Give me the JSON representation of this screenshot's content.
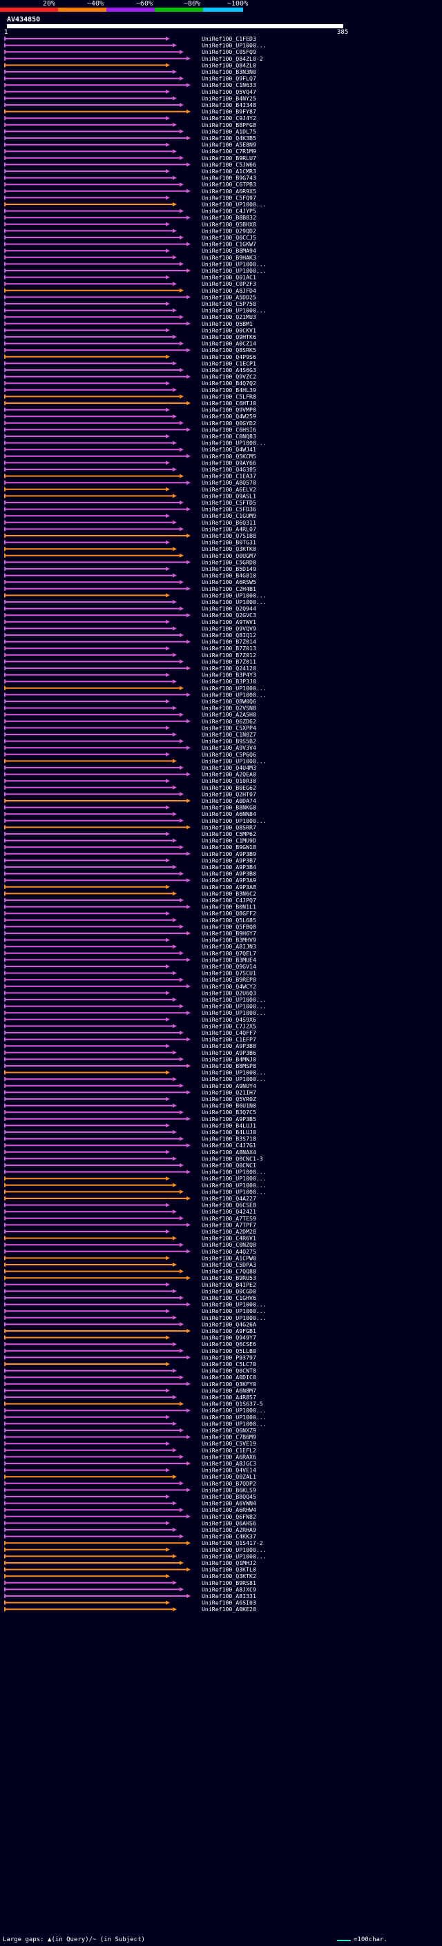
{
  "scale": {
    "ticks": [
      "20%",
      "~40%",
      "~60%",
      "~80%",
      "~100%"
    ],
    "colors": {
      "c20": "#ff2020",
      "c40": "#ff7f00",
      "c60": "#a020f0",
      "c80": "#00c000",
      "c100": "#00c8ff"
    }
  },
  "query": {
    "name": "AV434850",
    "start": "1",
    "end": "385"
  },
  "hit_colors": {
    "magenta": "#d85ad8",
    "orange": "#ff8c1a"
  },
  "hits": [
    {
      "label": "UniRef100_C1FED3",
      "color": "magenta"
    },
    {
      "label": "UniRef100_UP1000...",
      "color": "magenta"
    },
    {
      "label": "UniRef100_C0SFQ9",
      "color": "magenta"
    },
    {
      "label": "UniRef100_Q84ZL0-2",
      "color": "magenta"
    },
    {
      "label": "UniRef100_Q84ZL0",
      "color": "orange"
    },
    {
      "label": "UniRef100_B3N3N0",
      "color": "magenta"
    },
    {
      "label": "UniRef100_Q9FLQ7",
      "color": "magenta"
    },
    {
      "label": "UniRef100_C1N633",
      "color": "magenta"
    },
    {
      "label": "UniRef100_Q5VQ47",
      "color": "magenta"
    },
    {
      "label": "UniRef100_B4NY25",
      "color": "magenta"
    },
    {
      "label": "UniRef100_B4I348",
      "color": "magenta"
    },
    {
      "label": "UniRef100_B9FY87",
      "color": "orange"
    },
    {
      "label": "UniRef100_C9J4Y2",
      "color": "magenta"
    },
    {
      "label": "UniRef100_B8PFG8",
      "color": "magenta"
    },
    {
      "label": "UniRef100_A1DL75",
      "color": "magenta"
    },
    {
      "label": "UniRef100_Q4K3B5",
      "color": "magenta"
    },
    {
      "label": "UniRef100_A5E8N9",
      "color": "magenta"
    },
    {
      "label": "UniRef100_C7R1M9",
      "color": "magenta"
    },
    {
      "label": "UniRef100_B9RLU7",
      "color": "magenta"
    },
    {
      "label": "UniRef100_C5JW66",
      "color": "magenta"
    },
    {
      "label": "UniRef100_A1CMR3",
      "color": "magenta"
    },
    {
      "label": "UniRef100_B9G743",
      "color": "magenta"
    },
    {
      "label": "UniRef100_C6TPB3",
      "color": "magenta"
    },
    {
      "label": "UniRef100_A6R9X5",
      "color": "magenta"
    },
    {
      "label": "UniRef100_C5FQ97",
      "color": "magenta"
    },
    {
      "label": "UniRef100_UP1000...",
      "color": "orange"
    },
    {
      "label": "UniRef100_C4JYP5",
      "color": "magenta"
    },
    {
      "label": "UniRef100_B8B832",
      "color": "magenta"
    },
    {
      "label": "UniRef100_Q5BHX8",
      "color": "magenta"
    },
    {
      "label": "UniRef100_Q29QD2",
      "color": "magenta"
    },
    {
      "label": "UniRef100_Q0CCJ5",
      "color": "magenta"
    },
    {
      "label": "UniRef100_C1GKW7",
      "color": "magenta"
    },
    {
      "label": "UniRef100_B8MA94",
      "color": "magenta"
    },
    {
      "label": "UniRef100_B9HAK3",
      "color": "magenta"
    },
    {
      "label": "UniRef100_UP1000...",
      "color": "magenta"
    },
    {
      "label": "UniRef100_UP1000...",
      "color": "magenta"
    },
    {
      "label": "UniRef100_Q01AC1",
      "color": "magenta"
    },
    {
      "label": "UniRef100_C0P2F3",
      "color": "magenta"
    },
    {
      "label": "UniRef100_A8JFD4",
      "color": "orange"
    },
    {
      "label": "UniRef100_A5DD25",
      "color": "magenta"
    },
    {
      "label": "UniRef100_C5P750",
      "color": "magenta"
    },
    {
      "label": "UniRef100_UP1000...",
      "color": "magenta"
    },
    {
      "label": "UniRef100_Q21MU3",
      "color": "magenta"
    },
    {
      "label": "UniRef100_Q5BM1",
      "color": "magenta"
    },
    {
      "label": "UniRef100_Q0CKV1",
      "color": "magenta"
    },
    {
      "label": "UniRef100_Q9HTK6",
      "color": "magenta"
    },
    {
      "label": "UniRef100_A0CZ14",
      "color": "magenta"
    },
    {
      "label": "UniRef100_Q8SRK5",
      "color": "magenta"
    },
    {
      "label": "UniRef100_Q4P9S6",
      "color": "orange"
    },
    {
      "label": "UniRef100_C1ECP1",
      "color": "magenta"
    },
    {
      "label": "UniRef100_A4S6G3",
      "color": "magenta"
    },
    {
      "label": "UniRef100_Q9VZC2",
      "color": "magenta"
    },
    {
      "label": "UniRef100_B4Q7Q2",
      "color": "magenta"
    },
    {
      "label": "UniRef100_B4HL39",
      "color": "magenta"
    },
    {
      "label": "UniRef100_C5LFR8",
      "color": "orange"
    },
    {
      "label": "UniRef100_C6HTJ0",
      "color": "orange"
    },
    {
      "label": "UniRef100_Q9VMP0",
      "color": "magenta"
    },
    {
      "label": "UniRef100_Q4W259",
      "color": "magenta"
    },
    {
      "label": "UniRef100_Q0GYD2",
      "color": "magenta"
    },
    {
      "label": "UniRef100_C6HSI6",
      "color": "magenta"
    },
    {
      "label": "UniRef100_C0NQ83",
      "color": "magenta"
    },
    {
      "label": "UniRef100_UP1000...",
      "color": "magenta"
    },
    {
      "label": "UniRef100_Q4WJ41",
      "color": "magenta"
    },
    {
      "label": "UniRef100_Q5KCM5",
      "color": "magenta"
    },
    {
      "label": "UniRef100_Q9AY66",
      "color": "magenta"
    },
    {
      "label": "UniRef100_Q4G385",
      "color": "magenta"
    },
    {
      "label": "UniRef100_C1EA37",
      "color": "orange"
    },
    {
      "label": "UniRef100_A8Q570",
      "color": "magenta"
    },
    {
      "label": "UniRef100_A6ELV2",
      "color": "orange"
    },
    {
      "label": "UniRef100_Q9ASL1",
      "color": "orange"
    },
    {
      "label": "UniRef100_C5FTD5",
      "color": "magenta"
    },
    {
      "label": "UniRef100_C5FD36",
      "color": "magenta"
    },
    {
      "label": "UniRef100_C1GUM9",
      "color": "magenta"
    },
    {
      "label": "UniRef100_B6Q311",
      "color": "magenta"
    },
    {
      "label": "UniRef100_A4RL07",
      "color": "magenta"
    },
    {
      "label": "UniRef100_Q7S1B8",
      "color": "orange"
    },
    {
      "label": "UniRef100_B0TG31",
      "color": "magenta"
    },
    {
      "label": "UniRef100_Q3KTK0",
      "color": "orange"
    },
    {
      "label": "UniRef100_Q0UGM7",
      "color": "orange"
    },
    {
      "label": "UniRef100_C5GRD8",
      "color": "magenta"
    },
    {
      "label": "UniRef100_B5D149",
      "color": "magenta"
    },
    {
      "label": "UniRef100_B4G810",
      "color": "magenta"
    },
    {
      "label": "UniRef100_A6RSW5",
      "color": "magenta"
    },
    {
      "label": "UniRef100_C2H4B1",
      "color": "magenta"
    },
    {
      "label": "UniRef100_UP1000...",
      "color": "orange"
    },
    {
      "label": "UniRef100_UP1000...",
      "color": "magenta"
    },
    {
      "label": "UniRef100_Q2Q944",
      "color": "magenta"
    },
    {
      "label": "UniRef100_Q2GVC3",
      "color": "magenta"
    },
    {
      "label": "UniRef100_A9TWV1",
      "color": "magenta"
    },
    {
      "label": "UniRef100_Q9VQV9",
      "color": "magenta"
    },
    {
      "label": "UniRef100_Q8IQ12",
      "color": "magenta"
    },
    {
      "label": "UniRef100_B7Z014",
      "color": "magenta"
    },
    {
      "label": "UniRef100_B7Z013",
      "color": "magenta"
    },
    {
      "label": "UniRef100_B7Z012",
      "color": "magenta"
    },
    {
      "label": "UniRef100_B7Z011",
      "color": "magenta"
    },
    {
      "label": "UniRef100_Q24120",
      "color": "magenta"
    },
    {
      "label": "UniRef100_B3P4Y3",
      "color": "magenta"
    },
    {
      "label": "UniRef100_B3P3J0",
      "color": "magenta"
    },
    {
      "label": "UniRef100_UP1000...",
      "color": "orange"
    },
    {
      "label": "UniRef100_UP1000...",
      "color": "magenta"
    },
    {
      "label": "UniRef100_Q8W0Q6",
      "color": "magenta"
    },
    {
      "label": "UniRef100_Q2VSN8",
      "color": "magenta"
    },
    {
      "label": "UniRef100_A2A5H0",
      "color": "magenta"
    },
    {
      "label": "UniRef100_Q6ZD62",
      "color": "magenta"
    },
    {
      "label": "UniRef100_C5XPP4",
      "color": "magenta"
    },
    {
      "label": "UniRef100_C1N0Z7",
      "color": "magenta"
    },
    {
      "label": "UniRef100_B9S5B2",
      "color": "magenta"
    },
    {
      "label": "UniRef100_A9V3V4",
      "color": "magenta"
    },
    {
      "label": "UniRef100_C5P6Q6",
      "color": "magenta"
    },
    {
      "label": "UniRef100_UP1000...",
      "color": "orange"
    },
    {
      "label": "UniRef100_Q4U4M3",
      "color": "magenta"
    },
    {
      "label": "UniRef100_A2QEA0",
      "color": "magenta"
    },
    {
      "label": "UniRef100_Q10R30",
      "color": "magenta"
    },
    {
      "label": "UniRef100_B0EG62",
      "color": "magenta"
    },
    {
      "label": "UniRef100_Q2HT07",
      "color": "magenta"
    },
    {
      "label": "UniRef100_A0DA74",
      "color": "orange"
    },
    {
      "label": "UniRef100_B8NKG8",
      "color": "magenta"
    },
    {
      "label": "UniRef100_A6NN84",
      "color": "magenta"
    },
    {
      "label": "UniRef100_UP1000...",
      "color": "magenta"
    },
    {
      "label": "UniRef100_Q8SRR7",
      "color": "orange"
    },
    {
      "label": "UniRef100_C5MP62",
      "color": "magenta"
    },
    {
      "label": "UniRef100_C1MU9D",
      "color": "magenta"
    },
    {
      "label": "UniRef100_B9GW18",
      "color": "magenta"
    },
    {
      "label": "UniRef100_A9P3B9",
      "color": "magenta"
    },
    {
      "label": "UniRef100_A9P3B7",
      "color": "magenta"
    },
    {
      "label": "UniRef100_A9P3B4",
      "color": "magenta"
    },
    {
      "label": "UniRef100_A9P3B0",
      "color": "magenta"
    },
    {
      "label": "UniRef100_A9P3A9",
      "color": "magenta"
    },
    {
      "label": "UniRef100_A9P3A8",
      "color": "orange"
    },
    {
      "label": "UniRef100_B3N6C2",
      "color": "orange"
    },
    {
      "label": "UniRef100_C4JPQ7",
      "color": "magenta"
    },
    {
      "label": "UniRef100_B0N1L1",
      "color": "magenta"
    },
    {
      "label": "UniRef100_Q8GFF2",
      "color": "magenta"
    },
    {
      "label": "UniRef100_Q5L685",
      "color": "magenta"
    },
    {
      "label": "UniRef100_Q5FBQ8",
      "color": "magenta"
    },
    {
      "label": "UniRef100_B9H6Y7",
      "color": "magenta"
    },
    {
      "label": "UniRef100_B3MHV9",
      "color": "magenta"
    },
    {
      "label": "UniRef100_A8IJN3",
      "color": "magenta"
    },
    {
      "label": "UniRef100_Q7QEL7",
      "color": "magenta"
    },
    {
      "label": "UniRef100_B3MUE4",
      "color": "magenta"
    },
    {
      "label": "UniRef100_Q9GV14",
      "color": "magenta"
    },
    {
      "label": "UniRef100_Q7SCU1",
      "color": "magenta"
    },
    {
      "label": "UniRef100_B9REP8",
      "color": "magenta"
    },
    {
      "label": "UniRef100_Q4WCY2",
      "color": "magenta"
    },
    {
      "label": "UniRef100_Q2U6Q3",
      "color": "magenta"
    },
    {
      "label": "UniRef100_UP1000...",
      "color": "magenta"
    },
    {
      "label": "UniRef100_UP1000...",
      "color": "magenta"
    },
    {
      "label": "UniRef100_UP1000...",
      "color": "magenta"
    },
    {
      "label": "UniRef100_Q4S9X6",
      "color": "magenta"
    },
    {
      "label": "UniRef100_C7J2X5",
      "color": "magenta"
    },
    {
      "label": "UniRef100_C4QFF7",
      "color": "magenta"
    },
    {
      "label": "UniRef100_C1EFP7",
      "color": "magenta"
    },
    {
      "label": "UniRef100_A9P3B8",
      "color": "magenta"
    },
    {
      "label": "UniRef100_A9P3B6",
      "color": "magenta"
    },
    {
      "label": "UniRef100_B4MNJ0",
      "color": "magenta"
    },
    {
      "label": "UniRef100_B8MSP8",
      "color": "magenta"
    },
    {
      "label": "UniRef100_UP1000...",
      "color": "orange"
    },
    {
      "label": "UniRef100_UP1000...",
      "color": "magenta"
    },
    {
      "label": "UniRef100_A9NUY4",
      "color": "magenta"
    },
    {
      "label": "UniRef100_Q21IH7",
      "color": "magenta"
    },
    {
      "label": "UniRef100_Q5VR0Z",
      "color": "magenta"
    },
    {
      "label": "UniRef100_B6U1N0",
      "color": "magenta"
    },
    {
      "label": "UniRef100_B3Q7C5",
      "color": "magenta"
    },
    {
      "label": "UniRef100_A9P3B5",
      "color": "magenta"
    },
    {
      "label": "UniRef100_B4LUJ1",
      "color": "magenta"
    },
    {
      "label": "UniRef100_B4LUJ0",
      "color": "magenta"
    },
    {
      "label": "UniRef100_B3S718",
      "color": "magenta"
    },
    {
      "label": "UniRef100_C4J7G1",
      "color": "magenta"
    },
    {
      "label": "UniRef100_A8NAX4",
      "color": "magenta"
    },
    {
      "label": "UniRef100_Q0CNC1-3",
      "color": "magenta"
    },
    {
      "label": "UniRef100_Q0CNC1",
      "color": "magenta"
    },
    {
      "label": "UniRef100_UP1000...",
      "color": "magenta"
    },
    {
      "label": "UniRef100_UP1000...",
      "color": "orange"
    },
    {
      "label": "UniRef100_UP1000...",
      "color": "orange"
    },
    {
      "label": "UniRef100_UP1000...",
      "color": "orange"
    },
    {
      "label": "UniRef100_Q4A227",
      "color": "orange"
    },
    {
      "label": "UniRef100_Q6CSE8",
      "color": "magenta"
    },
    {
      "label": "UniRef100_Q42421",
      "color": "magenta"
    },
    {
      "label": "UniRef100_A7TES9",
      "color": "magenta"
    },
    {
      "label": "UniRef100_A7TPF7",
      "color": "magenta"
    },
    {
      "label": "UniRef100_A2DM28",
      "color": "magenta"
    },
    {
      "label": "UniRef100_C4R6V1",
      "color": "orange"
    },
    {
      "label": "UniRef100_C0NZQ8",
      "color": "magenta"
    },
    {
      "label": "UniRef100_A4Q275",
      "color": "magenta"
    },
    {
      "label": "UniRef100_A1CPW0",
      "color": "orange"
    },
    {
      "label": "UniRef100_C5DPA3",
      "color": "orange"
    },
    {
      "label": "UniRef100_C7QQ88",
      "color": "orange"
    },
    {
      "label": "UniRef100_B9RU53",
      "color": "orange"
    },
    {
      "label": "UniRef100_B4IPE2",
      "color": "magenta"
    },
    {
      "label": "UniRef100_Q0CGD0",
      "color": "magenta"
    },
    {
      "label": "UniRef100_C1GHV6",
      "color": "magenta"
    },
    {
      "label": "UniRef100_UP1000...",
      "color": "magenta"
    },
    {
      "label": "UniRef100_UP1000...",
      "color": "magenta"
    },
    {
      "label": "UniRef100_UP1000...",
      "color": "magenta"
    },
    {
      "label": "UniRef100_Q4G26A",
      "color": "magenta"
    },
    {
      "label": "UniRef100_A9FGB1",
      "color": "orange"
    },
    {
      "label": "UniRef100_Q949Y7",
      "color": "orange"
    },
    {
      "label": "UniRef100_Q6CSE6",
      "color": "magenta"
    },
    {
      "label": "UniRef100_Q5LLB0",
      "color": "magenta"
    },
    {
      "label": "UniRef100_P93797",
      "color": "magenta"
    },
    {
      "label": "UniRef100_C5LC70",
      "color": "orange"
    },
    {
      "label": "UniRef100_Q0CNT8",
      "color": "magenta"
    },
    {
      "label": "UniRef100_A0DIC0",
      "color": "magenta"
    },
    {
      "label": "UniRef100_Q3KFY0",
      "color": "magenta"
    },
    {
      "label": "UniRef100_A6N8M7",
      "color": "magenta"
    },
    {
      "label": "UniRef100_A4R8S7",
      "color": "magenta"
    },
    {
      "label": "UniRef100_Q1S637-5",
      "color": "orange"
    },
    {
      "label": "UniRef100_UP1000...",
      "color": "magenta"
    },
    {
      "label": "UniRef100_UP1000...",
      "color": "magenta"
    },
    {
      "label": "UniRef100_UP1000...",
      "color": "magenta"
    },
    {
      "label": "UniRef100_Q6NXZ9",
      "color": "magenta"
    },
    {
      "label": "UniRef100_C7B6M9",
      "color": "magenta"
    },
    {
      "label": "UniRef100_C5VE19",
      "color": "magenta"
    },
    {
      "label": "UniRef100_C1EFL2",
      "color": "magenta"
    },
    {
      "label": "UniRef100_A6RAX6",
      "color": "magenta"
    },
    {
      "label": "UniRef100_A8JGC3",
      "color": "magenta"
    },
    {
      "label": "UniRef100_Q4VE14",
      "color": "magenta"
    },
    {
      "label": "UniRef100_Q0ZAL1",
      "color": "orange"
    },
    {
      "label": "UniRef100_B7QDP2",
      "color": "magenta"
    },
    {
      "label": "UniRef100_B6KLS9",
      "color": "magenta"
    },
    {
      "label": "UniRef100_B8QQ45",
      "color": "magenta"
    },
    {
      "label": "UniRef100_A6VWN4",
      "color": "magenta"
    },
    {
      "label": "UniRef100_A6RHW4",
      "color": "magenta"
    },
    {
      "label": "UniRef100_Q6FN82",
      "color": "magenta"
    },
    {
      "label": "UniRef100_Q6AHS6",
      "color": "magenta"
    },
    {
      "label": "UniRef100_A2RHA9",
      "color": "magenta"
    },
    {
      "label": "UniRef100_C4KK37",
      "color": "magenta"
    },
    {
      "label": "UniRef100_Q1S417-2",
      "color": "orange"
    },
    {
      "label": "UniRef100_UP1000...",
      "color": "orange"
    },
    {
      "label": "UniRef100_UP1000...",
      "color": "orange"
    },
    {
      "label": "UniRef100_Q1MHJ2",
      "color": "orange"
    },
    {
      "label": "UniRef100_Q3KTL0",
      "color": "orange"
    },
    {
      "label": "UniRef100_Q3KTK2",
      "color": "orange"
    },
    {
      "label": "UniRef100_B9RS81",
      "color": "magenta"
    },
    {
      "label": "UniRef100_A8JXC9",
      "color": "magenta"
    },
    {
      "label": "UniRef100_A8I331",
      "color": "magenta"
    },
    {
      "label": "UniRef100_A6SI03",
      "color": "orange"
    },
    {
      "label": "UniRef100_A0KE20",
      "color": "orange"
    }
  ],
  "footer": {
    "gaps_text": "Large gaps: ▲(in Query)/~ (in Subject)",
    "legend_text": "=100char."
  }
}
